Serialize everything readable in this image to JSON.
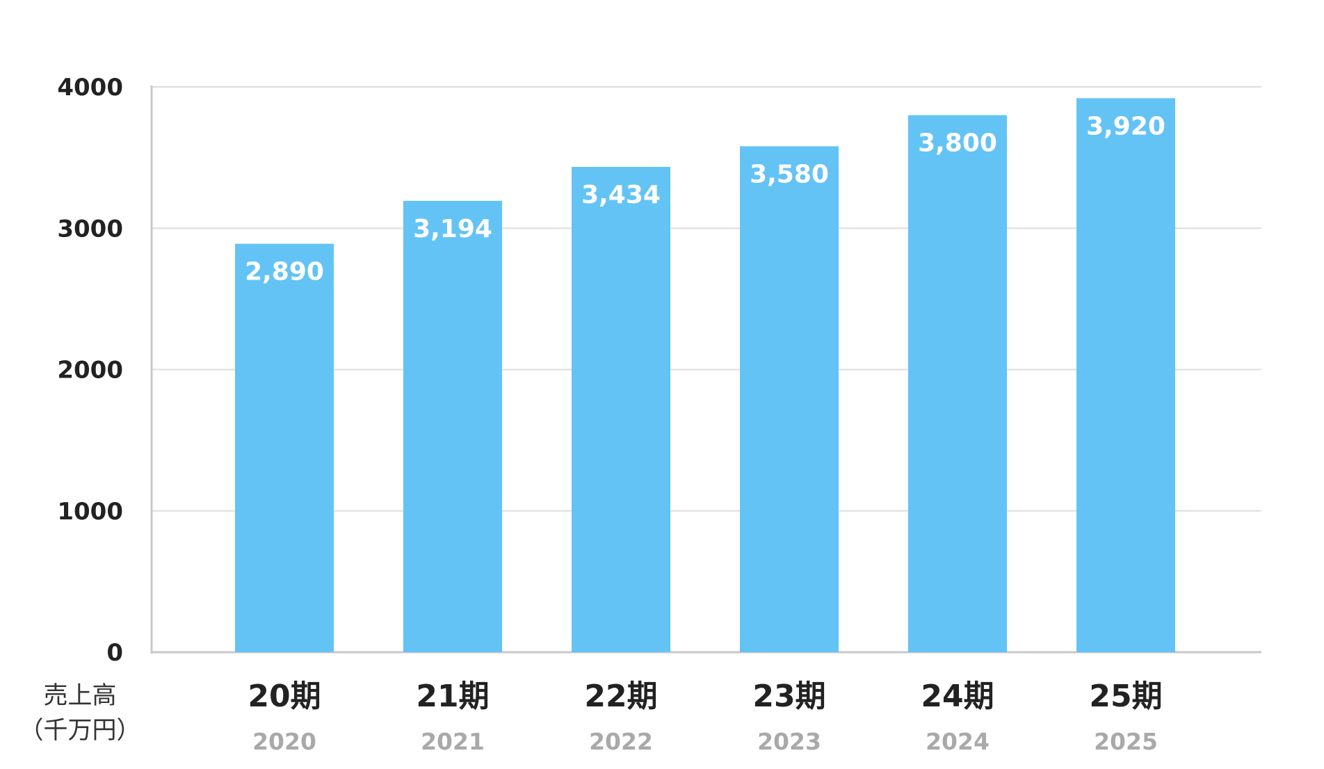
{
  "chart_data": {
    "type": "bar",
    "title": "",
    "ylabel_lines": [
      "売上高",
      "（千万円）"
    ],
    "categories": [
      "20期",
      "21期",
      "22期",
      "23期",
      "24期",
      "25期"
    ],
    "sub_labels": [
      "2020",
      "2021",
      "2022",
      "2023",
      "2024",
      "2025"
    ],
    "values": [
      2890,
      3194,
      3434,
      3580,
      3800,
      3920
    ],
    "value_labels": [
      "2,890",
      "3,194",
      "3,434",
      "3,580",
      "3,800",
      "3,920"
    ],
    "yticks": [
      0,
      1000,
      2000,
      3000,
      4000
    ],
    "ylim": [
      0,
      4000
    ],
    "grid": true,
    "colors": {
      "bar": "#64c3f5",
      "grid": "#dddddd",
      "axis": "#c8c8c8",
      "tick_text": "#222222",
      "category_text": "#222222",
      "year_text": "#a9a9a9",
      "value_text": "#ffffff"
    }
  }
}
